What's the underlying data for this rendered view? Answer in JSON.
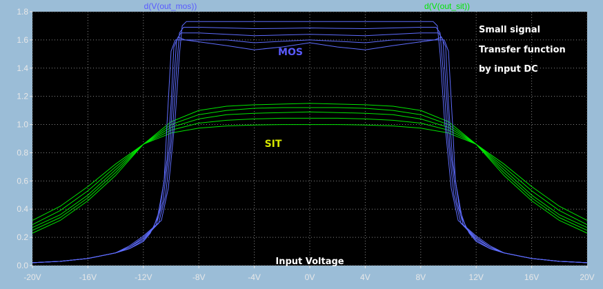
{
  "colors": {
    "frame": "#9bbdd7",
    "plot_bg": "#000000",
    "grid": "#8a8a8a",
    "tick_text": "#e8e8e8",
    "annotation_text": "#ffffff",
    "mos": "#5f6dff",
    "sit": "#00e600",
    "mos_label": "#5a5aff",
    "sit_label": "#d6e600"
  },
  "chart_data": {
    "type": "line",
    "title": "",
    "xlabel": "Input Voltage",
    "ylabel": "",
    "xlim": [
      -20,
      20
    ],
    "ylim": [
      0,
      1.8
    ],
    "grid": true,
    "x_ticks": [
      -20,
      -16,
      -12,
      -8,
      -4,
      0,
      4,
      8,
      12,
      16,
      20
    ],
    "x_tick_labels": [
      "-20V",
      "-16V",
      "-12V",
      "-8V",
      "-4V",
      "0V",
      "4V",
      "8V",
      "12V",
      "16V",
      "20V"
    ],
    "y_ticks": [
      0,
      0.2,
      0.4,
      0.6,
      0.8,
      1.0,
      1.2,
      1.4,
      1.6,
      1.8
    ],
    "y_tick_labels": [
      "0.0",
      "0.2",
      "0.4",
      "0.6",
      "0.8",
      "1.0",
      "1.2",
      "1.4",
      "1.6",
      "1.8"
    ],
    "legend": [
      {
        "name": "d(V(out_mos))",
        "position": "top-left"
      },
      {
        "name": "d(V(out_sit))",
        "position": "top-right"
      }
    ],
    "annotations": {
      "mos": "MOS",
      "sit": "SIT",
      "info": [
        "Small signal",
        "Transfer function",
        "by input DC"
      ]
    },
    "series": [
      {
        "name": "d(V(out_mos))",
        "group": "mos",
        "x": [
          -20,
          -18,
          -16,
          -14,
          -13,
          -12,
          -11.5,
          -11,
          -10.5,
          -10.3,
          -10,
          -9.7,
          -9,
          -6,
          -4,
          -2,
          0,
          2,
          4,
          6,
          9,
          9.7,
          10,
          10.3,
          10.5,
          11,
          11.5,
          12,
          13,
          14,
          16,
          18,
          20
        ],
        "y": [
          0.02,
          0.03,
          0.05,
          0.09,
          0.12,
          0.17,
          0.23,
          0.33,
          0.6,
          1.0,
          1.52,
          1.6,
          1.6,
          1.56,
          1.53,
          1.55,
          1.58,
          1.55,
          1.53,
          1.56,
          1.6,
          1.6,
          1.52,
          1.0,
          0.6,
          0.33,
          0.23,
          0.17,
          0.12,
          0.09,
          0.05,
          0.03,
          0.02
        ]
      },
      {
        "name": "d(V(out_mos))",
        "group": "mos",
        "x": [
          -20,
          -18,
          -16,
          -14,
          -13,
          -12,
          -11.3,
          -10.8,
          -10.3,
          -10,
          -9.8,
          -9.5,
          -9,
          -6,
          -4,
          -2,
          0,
          2,
          4,
          6,
          9,
          9.5,
          9.8,
          10,
          10.3,
          10.8,
          11.3,
          12,
          13,
          14,
          16,
          18,
          20
        ],
        "y": [
          0.02,
          0.03,
          0.05,
          0.09,
          0.12,
          0.18,
          0.26,
          0.4,
          0.75,
          1.15,
          1.55,
          1.62,
          1.6,
          1.6,
          1.58,
          1.59,
          1.6,
          1.59,
          1.58,
          1.6,
          1.6,
          1.62,
          1.55,
          1.15,
          0.75,
          0.4,
          0.26,
          0.18,
          0.12,
          0.09,
          0.05,
          0.03,
          0.02
        ]
      },
      {
        "name": "d(V(out_mos))",
        "group": "mos",
        "x": [
          -20,
          -18,
          -16,
          -14,
          -13,
          -12,
          -11.1,
          -10.6,
          -10.1,
          -9.8,
          -9.6,
          -9.3,
          -8,
          -6,
          -4,
          -2,
          0,
          2,
          4,
          6,
          8,
          9.3,
          9.6,
          9.8,
          10.1,
          10.6,
          11.1,
          12,
          13,
          14,
          16,
          18,
          20
        ],
        "y": [
          0.02,
          0.03,
          0.05,
          0.09,
          0.13,
          0.19,
          0.28,
          0.45,
          0.85,
          1.3,
          1.6,
          1.65,
          1.65,
          1.64,
          1.63,
          1.635,
          1.64,
          1.635,
          1.63,
          1.64,
          1.65,
          1.65,
          1.6,
          1.3,
          0.85,
          0.45,
          0.28,
          0.19,
          0.13,
          0.09,
          0.05,
          0.03,
          0.02
        ]
      },
      {
        "name": "d(V(out_mos))",
        "group": "mos",
        "x": [
          -20,
          -18,
          -16,
          -14,
          -13,
          -12,
          -10.9,
          -10.4,
          -9.9,
          -9.6,
          -9.4,
          -9.1,
          -8,
          -6,
          -4,
          -2,
          0,
          2,
          4,
          6,
          8,
          9.1,
          9.4,
          9.6,
          9.9,
          10.4,
          10.9,
          12,
          13,
          14,
          16,
          18,
          20
        ],
        "y": [
          0.02,
          0.03,
          0.05,
          0.09,
          0.13,
          0.2,
          0.3,
          0.5,
          0.95,
          1.4,
          1.65,
          1.69,
          1.69,
          1.685,
          1.68,
          1.682,
          1.685,
          1.682,
          1.68,
          1.685,
          1.69,
          1.69,
          1.65,
          1.4,
          0.95,
          0.5,
          0.3,
          0.2,
          0.13,
          0.09,
          0.05,
          0.03,
          0.02
        ]
      },
      {
        "name": "d(V(out_mos))",
        "group": "mos",
        "x": [
          -20,
          -18,
          -16,
          -14,
          -13,
          -12,
          -10.7,
          -10.2,
          -9.7,
          -9.4,
          -9.2,
          -8.9,
          -8,
          -6,
          -4,
          -2,
          0,
          2,
          4,
          6,
          8,
          8.9,
          9.2,
          9.4,
          9.7,
          10.2,
          10.7,
          12,
          13,
          14,
          16,
          18,
          20
        ],
        "y": [
          0.02,
          0.03,
          0.05,
          0.09,
          0.14,
          0.21,
          0.32,
          0.55,
          1.05,
          1.5,
          1.7,
          1.73,
          1.73,
          1.73,
          1.73,
          1.73,
          1.73,
          1.73,
          1.73,
          1.73,
          1.73,
          1.73,
          1.7,
          1.5,
          1.05,
          0.55,
          0.32,
          0.21,
          0.14,
          0.09,
          0.05,
          0.03,
          0.02
        ]
      },
      {
        "name": "d(V(out_sit))",
        "group": "sit",
        "x": [
          -20,
          -18,
          -16,
          -14,
          -12,
          -10,
          -8,
          -6,
          -4,
          -2,
          0,
          2,
          4,
          6,
          8,
          10,
          12,
          14,
          16,
          18,
          20
        ],
        "y": [
          0.32,
          0.42,
          0.56,
          0.72,
          0.86,
          0.94,
          0.975,
          0.99,
          0.997,
          1.0,
          1.0,
          1.0,
          0.997,
          0.99,
          0.975,
          0.94,
          0.86,
          0.72,
          0.56,
          0.42,
          0.32
        ]
      },
      {
        "name": "d(V(out_sit))",
        "group": "sit",
        "x": [
          -20,
          -18,
          -16,
          -14,
          -12,
          -10,
          -8,
          -6,
          -4,
          -2,
          0,
          2,
          4,
          6,
          8,
          10,
          12,
          14,
          16,
          18,
          20
        ],
        "y": [
          0.29,
          0.39,
          0.53,
          0.7,
          0.86,
          0.96,
          1.01,
          1.03,
          1.04,
          1.045,
          1.045,
          1.045,
          1.04,
          1.03,
          1.01,
          0.96,
          0.86,
          0.7,
          0.53,
          0.39,
          0.29
        ]
      },
      {
        "name": "d(V(out_sit))",
        "group": "sit",
        "x": [
          -20,
          -18,
          -16,
          -14,
          -12,
          -10,
          -8,
          -6,
          -4,
          -2,
          0,
          2,
          4,
          6,
          8,
          10,
          12,
          14,
          16,
          18,
          20
        ],
        "y": [
          0.27,
          0.36,
          0.5,
          0.68,
          0.86,
          0.98,
          1.04,
          1.07,
          1.08,
          1.085,
          1.09,
          1.085,
          1.08,
          1.07,
          1.04,
          0.98,
          0.86,
          0.68,
          0.5,
          0.36,
          0.27
        ]
      },
      {
        "name": "d(V(out_sit))",
        "group": "sit",
        "x": [
          -20,
          -18,
          -16,
          -14,
          -12,
          -10,
          -8,
          -6,
          -4,
          -2,
          0,
          2,
          4,
          6,
          8,
          10,
          12,
          14,
          16,
          18,
          20
        ],
        "y": [
          0.25,
          0.34,
          0.48,
          0.66,
          0.86,
          1.0,
          1.07,
          1.1,
          1.115,
          1.12,
          1.12,
          1.12,
          1.115,
          1.1,
          1.07,
          1.0,
          0.86,
          0.66,
          0.48,
          0.34,
          0.25
        ]
      },
      {
        "name": "d(V(out_sit))",
        "group": "sit",
        "x": [
          -20,
          -18,
          -16,
          -14,
          -12,
          -10,
          -8,
          -6,
          -4,
          -2,
          0,
          2,
          4,
          6,
          8,
          10,
          12,
          14,
          16,
          18,
          20
        ],
        "y": [
          0.23,
          0.32,
          0.46,
          0.64,
          0.86,
          1.02,
          1.1,
          1.13,
          1.14,
          1.145,
          1.15,
          1.145,
          1.14,
          1.13,
          1.1,
          1.02,
          0.86,
          0.64,
          0.46,
          0.32,
          0.23
        ]
      }
    ]
  }
}
